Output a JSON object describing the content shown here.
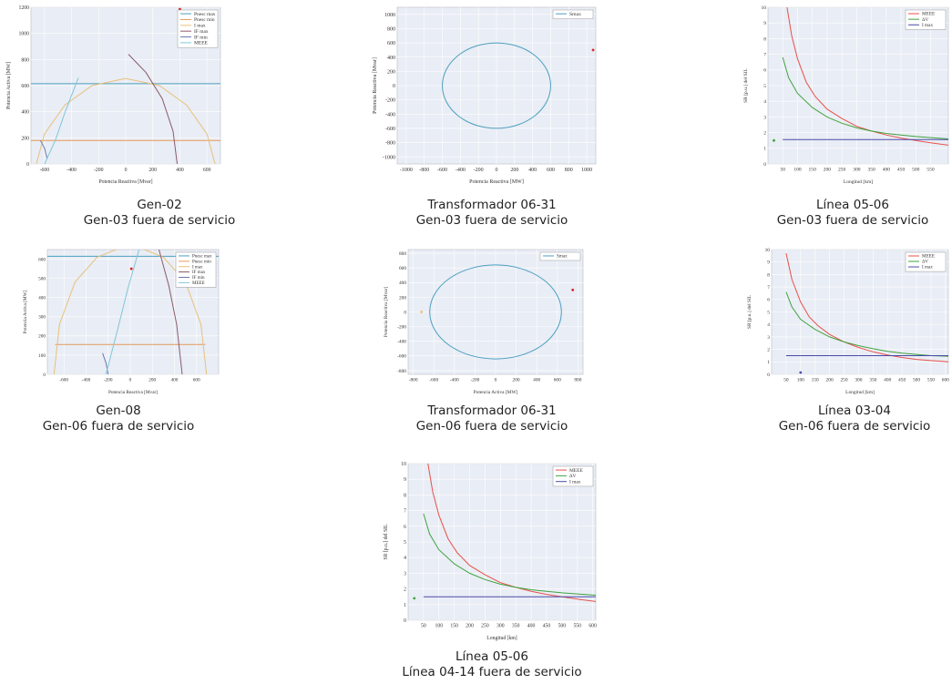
{
  "captions": [
    {
      "line1": "Gen-02",
      "line2": "Gen-03 fuera de servicio"
    },
    {
      "line1": "Transformador 06-31",
      "line2": "Gen-03 fuera de servicio"
    },
    {
      "line1": "Línea 05-06",
      "line2": "Gen-03 fuera de servicio"
    },
    {
      "line1": "Gen-08",
      "line2": "Gen-06 fuera de servicio"
    },
    {
      "line1": "Transformador 06-31",
      "line2": "Gen-06 fuera de servicio"
    },
    {
      "line1": "Línea 03-04",
      "line2": "Gen-06 fuera de servicio"
    },
    {
      "line1": "Línea 05-06",
      "line2": "Línea 04-14 fuera de servicio"
    }
  ],
  "chart_data": [
    {
      "type": "line",
      "xlabel": "Potencia Reactiva [Mvar]",
      "ylabel": "Potencia Activa [MW]",
      "xlim": [
        -700,
        700
      ],
      "ylim": [
        0,
        1200
      ],
      "xticks": [
        -600,
        -400,
        -200,
        0,
        200,
        400,
        600
      ],
      "yticks": [
        0,
        200,
        400,
        600,
        800,
        1000,
        1200
      ],
      "legend": [
        "Pnesc max",
        "Pnesc min",
        "I max",
        "IF max",
        "IF min",
        "MEEE"
      ],
      "legend_position": "top-right",
      "series": [
        {
          "name": "Pnesc max",
          "color": "#4c9fbf",
          "points": [
            [
              -700,
              615
            ],
            [
              700,
              615
            ]
          ]
        },
        {
          "name": "Pnesc min",
          "color": "#e59a5a",
          "points": [
            [
              -700,
              180
            ],
            [
              700,
              180
            ]
          ]
        },
        {
          "name": "I max",
          "color": "#e8c17c",
          "points": [
            [
              -660,
              0
            ],
            [
              -600,
              230
            ],
            [
              -450,
              450
            ],
            [
              -250,
              600
            ],
            [
              0,
              655
            ],
            [
              250,
              600
            ],
            [
              450,
              450
            ],
            [
              600,
              230
            ],
            [
              660,
              0
            ]
          ]
        },
        {
          "name": "IF max",
          "color": "#8a5a6a",
          "points": [
            [
              20,
              840
            ],
            [
              150,
              700
            ],
            [
              270,
              500
            ],
            [
              350,
              250
            ],
            [
              380,
              0
            ]
          ]
        },
        {
          "name": "IF min",
          "color": "#6a7ab0",
          "points": [
            [
              -630,
              180
            ],
            [
              -600,
              120
            ],
            [
              -580,
              40
            ]
          ]
        },
        {
          "name": "MEEE",
          "color": "#7fc7d9",
          "points": [
            [
              -600,
              0
            ],
            [
              -520,
              180
            ],
            [
              -450,
              390
            ],
            [
              -350,
              660
            ]
          ]
        }
      ],
      "markers": [
        {
          "x": 400,
          "y": 1240,
          "color": "#d62728"
        }
      ]
    },
    {
      "type": "line",
      "xlabel": "Potencia Reactiva [MW]",
      "ylabel": "Potencia Reactiva [Mvar]",
      "xlim": [
        -1100,
        1100
      ],
      "ylim": [
        -1100,
        1100
      ],
      "xticks": [
        -1000,
        -800,
        -600,
        -400,
        -200,
        0,
        200,
        400,
        600,
        800,
        1000
      ],
      "yticks": [
        -1000,
        -800,
        -600,
        -400,
        -200,
        0,
        200,
        400,
        600,
        800,
        1000
      ],
      "legend": [
        "Smax"
      ],
      "legend_position": "top-right",
      "series": [
        {
          "name": "Smax",
          "color": "#4c9fbf",
          "circle": {
            "cx": 0,
            "cy": 0,
            "r": 600
          }
        }
      ],
      "markers": [
        {
          "x": 1070,
          "y": 500,
          "color": "#d62728"
        }
      ]
    },
    {
      "type": "line",
      "xlabel": "Longitud [km]",
      "ylabel": "SR [p.u.] del SIL",
      "xlim": [
        0,
        610
      ],
      "ylim": [
        0,
        10
      ],
      "xticks": [
        50,
        100,
        150,
        200,
        250,
        300,
        350,
        400,
        450,
        500,
        550
      ],
      "yticks": [
        0,
        1,
        2,
        3,
        4,
        5,
        6,
        7,
        8,
        9,
        10
      ],
      "legend": [
        "MEEE",
        "ΔV",
        "I max"
      ],
      "legend_position": "top-right",
      "series": [
        {
          "name": "MEEE",
          "color": "#e8504a",
          "points": [
            [
              60,
              10.5
            ],
            [
              80,
              8.2
            ],
            [
              100,
              6.7
            ],
            [
              130,
              5.2
            ],
            [
              160,
              4.3
            ],
            [
              200,
              3.5
            ],
            [
              250,
              2.9
            ],
            [
              300,
              2.4
            ],
            [
              350,
              2.1
            ],
            [
              400,
              1.85
            ],
            [
              450,
              1.65
            ],
            [
              500,
              1.5
            ],
            [
              550,
              1.35
            ],
            [
              610,
              1.2
            ]
          ]
        },
        {
          "name": "ΔV",
          "color": "#3fa33f",
          "points": [
            [
              50,
              6.8
            ],
            [
              70,
              5.5
            ],
            [
              100,
              4.5
            ],
            [
              150,
              3.6
            ],
            [
              200,
              3.0
            ],
            [
              250,
              2.6
            ],
            [
              300,
              2.3
            ],
            [
              350,
              2.1
            ],
            [
              400,
              1.95
            ],
            [
              450,
              1.85
            ],
            [
              500,
              1.75
            ],
            [
              550,
              1.68
            ],
            [
              610,
              1.6
            ]
          ]
        },
        {
          "name": "I max",
          "color": "#4a4aa8",
          "points": [
            [
              50,
              1.55
            ],
            [
              610,
              1.55
            ]
          ]
        }
      ],
      "markers": [
        {
          "x": 20,
          "y": 1.5,
          "color": "#3fa33f"
        }
      ]
    },
    {
      "type": "line",
      "xlabel": "Potencia Reactiva [Mvar]",
      "ylabel": "Potencia Activa [MW]",
      "xlim": [
        -750,
        800
      ],
      "ylim": [
        0,
        650
      ],
      "xticks": [
        -600,
        -400,
        -200,
        0,
        200,
        400,
        600
      ],
      "yticks": [
        0,
        100,
        200,
        300,
        400,
        500,
        600
      ],
      "legend": [
        "Pnesc max",
        "Pnesc min",
        "I max",
        "IF max",
        "IF min",
        "MEEE"
      ],
      "legend_position": "top-right",
      "series": [
        {
          "name": "Pnesc max",
          "color": "#4c9fbf",
          "points": [
            [
              -750,
              615
            ],
            [
              800,
              615
            ]
          ]
        },
        {
          "name": "Pnesc min",
          "color": "#e59a5a",
          "points": [
            [
              -680,
              155
            ],
            [
              680,
              155
            ]
          ]
        },
        {
          "name": "I max",
          "color": "#e8c17c",
          "points": [
            [
              -690,
              0
            ],
            [
              -640,
              260
            ],
            [
              -500,
              480
            ],
            [
              -300,
              610
            ],
            [
              0,
              680
            ],
            [
              300,
              610
            ],
            [
              500,
              480
            ],
            [
              640,
              260
            ],
            [
              690,
              0
            ]
          ]
        },
        {
          "name": "IF max",
          "color": "#8a5a6a",
          "points": [
            [
              260,
              650
            ],
            [
              350,
              460
            ],
            [
              420,
              260
            ],
            [
              470,
              0
            ]
          ]
        },
        {
          "name": "IF min",
          "color": "#6a7ab0",
          "points": [
            [
              -250,
              110
            ],
            [
              -220,
              60
            ],
            [
              -200,
              0
            ]
          ]
        },
        {
          "name": "MEEE",
          "color": "#7fc7d9",
          "points": [
            [
              -220,
              0
            ],
            [
              -120,
              220
            ],
            [
              -20,
              450
            ],
            [
              80,
              650
            ]
          ]
        }
      ],
      "markers": [
        {
          "x": 10,
          "y": 550,
          "color": "#d62728"
        }
      ]
    },
    {
      "type": "line",
      "xlabel": "Potencia Activa [MW]",
      "ylabel": "Potencia Reactiva [Mvar]",
      "xlim": [
        -850,
        850
      ],
      "ylim": [
        -850,
        850
      ],
      "xticks": [
        -800,
        -600,
        -400,
        -200,
        0,
        200,
        400,
        600,
        800
      ],
      "yticks": [
        -800,
        -600,
        -400,
        -200,
        0,
        200,
        400,
        600,
        800
      ],
      "legend": [
        "Smax"
      ],
      "legend_position": "top-right",
      "series": [
        {
          "name": "Smax",
          "color": "#4c9fbf",
          "circle": {
            "cx": 0,
            "cy": 0,
            "r": 640
          }
        }
      ],
      "markers": [
        {
          "x": 750,
          "y": 300,
          "color": "#d62728"
        },
        {
          "x": -720,
          "y": 0,
          "color": "#e8c17c"
        }
      ]
    },
    {
      "type": "line",
      "xlabel": "Longitud [km]",
      "ylabel": "SR [p.u.] del SIL",
      "xlim": [
        0,
        610
      ],
      "ylim": [
        0,
        10
      ],
      "xticks": [
        50,
        100,
        150,
        200,
        250,
        300,
        350,
        400,
        450,
        500,
        550,
        600
      ],
      "yticks": [
        0,
        1,
        2,
        3,
        4,
        5,
        6,
        7,
        8,
        9,
        10
      ],
      "legend": [
        "MEEE",
        "ΔV",
        "I max"
      ],
      "legend_position": "top-right",
      "series": [
        {
          "name": "MEEE",
          "color": "#e8504a",
          "points": [
            [
              50,
              9.7
            ],
            [
              70,
              7.6
            ],
            [
              100,
              5.8
            ],
            [
              130,
              4.6
            ],
            [
              160,
              3.9
            ],
            [
              200,
              3.2
            ],
            [
              250,
              2.6
            ],
            [
              300,
              2.15
            ],
            [
              350,
              1.8
            ],
            [
              400,
              1.55
            ],
            [
              450,
              1.35
            ],
            [
              500,
              1.2
            ],
            [
              550,
              1.1
            ],
            [
              610,
              1.0
            ]
          ]
        },
        {
          "name": "ΔV",
          "color": "#3fa33f",
          "points": [
            [
              50,
              6.6
            ],
            [
              70,
              5.4
            ],
            [
              100,
              4.4
            ],
            [
              150,
              3.6
            ],
            [
              200,
              3.0
            ],
            [
              250,
              2.6
            ],
            [
              300,
              2.3
            ],
            [
              350,
              2.05
            ],
            [
              400,
              1.85
            ],
            [
              450,
              1.7
            ],
            [
              500,
              1.6
            ],
            [
              550,
              1.5
            ],
            [
              610,
              1.45
            ]
          ]
        },
        {
          "name": "I max",
          "color": "#4a4aa8",
          "points": [
            [
              50,
              1.5
            ],
            [
              610,
              1.5
            ]
          ]
        }
      ],
      "markers": [
        {
          "x": 100,
          "y": 0.1,
          "color": "#4a4aa8"
        }
      ]
    },
    {
      "type": "line",
      "xlabel": "Longitud [km]",
      "ylabel": "SR [p.u.] del SIL",
      "xlim": [
        0,
        610
      ],
      "ylim": [
        0,
        10
      ],
      "xticks": [
        50,
        100,
        150,
        200,
        250,
        300,
        350,
        400,
        450,
        500,
        550,
        600
      ],
      "yticks": [
        0,
        1,
        2,
        3,
        4,
        5,
        6,
        7,
        8,
        9,
        10
      ],
      "legend": [
        "MEEE",
        "ΔV",
        "I max"
      ],
      "legend_position": "top-right",
      "series": [
        {
          "name": "MEEE",
          "color": "#e8504a",
          "points": [
            [
              60,
              10.5
            ],
            [
              80,
              8.2
            ],
            [
              100,
              6.7
            ],
            [
              130,
              5.2
            ],
            [
              160,
              4.3
            ],
            [
              200,
              3.5
            ],
            [
              250,
              2.9
            ],
            [
              300,
              2.4
            ],
            [
              350,
              2.1
            ],
            [
              400,
              1.85
            ],
            [
              450,
              1.65
            ],
            [
              500,
              1.5
            ],
            [
              550,
              1.35
            ],
            [
              610,
              1.2
            ]
          ]
        },
        {
          "name": "ΔV",
          "color": "#3fa33f",
          "points": [
            [
              50,
              6.8
            ],
            [
              70,
              5.5
            ],
            [
              100,
              4.5
            ],
            [
              150,
              3.6
            ],
            [
              200,
              3.0
            ],
            [
              250,
              2.6
            ],
            [
              300,
              2.3
            ],
            [
              350,
              2.1
            ],
            [
              400,
              1.95
            ],
            [
              450,
              1.85
            ],
            [
              500,
              1.75
            ],
            [
              550,
              1.68
            ],
            [
              610,
              1.6
            ]
          ]
        },
        {
          "name": "I max",
          "color": "#4a4aa8",
          "points": [
            [
              50,
              1.5
            ],
            [
              610,
              1.5
            ]
          ]
        }
      ],
      "markers": [
        {
          "x": 20,
          "y": 1.4,
          "color": "#3fa33f"
        }
      ]
    }
  ]
}
